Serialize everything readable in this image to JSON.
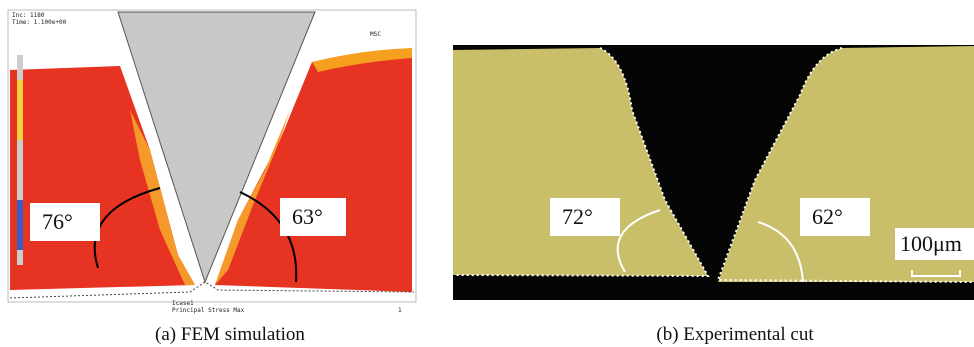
{
  "panels": [
    {
      "caption": "(a) FEM simulation",
      "header": [
        "Inc: 1180",
        "Time: 1.100e+00"
      ],
      "logo": "MSC",
      "angles": [
        "76°",
        "63°"
      ],
      "legend": [
        "Icase1",
        "Principal Stress Max"
      ],
      "page_number": "1"
    },
    {
      "caption": "(b) Experimental cut",
      "angles": [
        "72°",
        "62°"
      ],
      "scale_bar": "100μm"
    }
  ]
}
